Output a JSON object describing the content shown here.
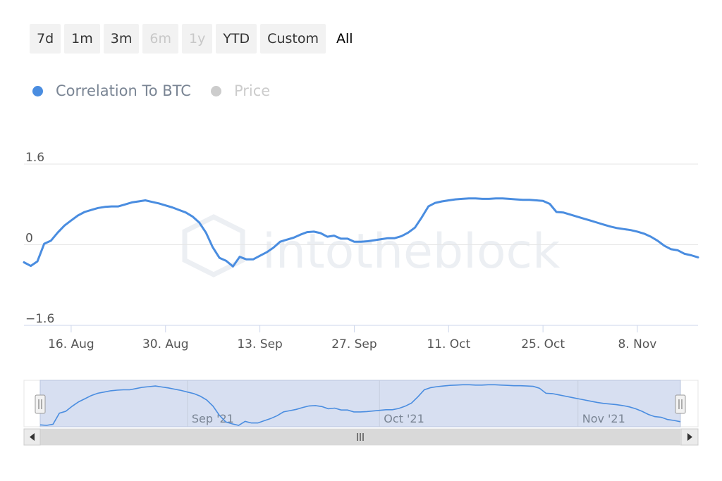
{
  "range_selector": {
    "buttons": [
      {
        "label": "7d",
        "state": "normal"
      },
      {
        "label": "1m",
        "state": "normal"
      },
      {
        "label": "3m",
        "state": "normal"
      },
      {
        "label": "6m",
        "state": "disabled"
      },
      {
        "label": "1y",
        "state": "disabled"
      },
      {
        "label": "YTD",
        "state": "normal"
      },
      {
        "label": "Custom",
        "state": "normal"
      },
      {
        "label": "All",
        "state": "selected"
      }
    ]
  },
  "legend": {
    "items": [
      {
        "label": "Correlation To BTC",
        "color": "#4a8de0",
        "active": true
      },
      {
        "label": "Price",
        "color": "#cccccc",
        "active": false
      }
    ]
  },
  "watermark": "intotheblock",
  "colors": {
    "series": "#4a8de0",
    "navigator_fill": "#d3dcef",
    "scrollbar": "#d9d9d9"
  },
  "chart_data": {
    "type": "line",
    "series": [
      {
        "name": "Correlation To BTC",
        "x": [
          "2021-08-09",
          "2021-08-10",
          "2021-08-11",
          "2021-08-12",
          "2021-08-13",
          "2021-08-14",
          "2021-08-15",
          "2021-08-16",
          "2021-08-17",
          "2021-08-18",
          "2021-08-19",
          "2021-08-20",
          "2021-08-21",
          "2021-08-22",
          "2021-08-23",
          "2021-08-24",
          "2021-08-25",
          "2021-08-26",
          "2021-08-27",
          "2021-08-28",
          "2021-08-29",
          "2021-08-30",
          "2021-08-31",
          "2021-09-01",
          "2021-09-02",
          "2021-09-03",
          "2021-09-04",
          "2021-09-05",
          "2021-09-06",
          "2021-09-07",
          "2021-09-08",
          "2021-09-09",
          "2021-09-10",
          "2021-09-11",
          "2021-09-12",
          "2021-09-13",
          "2021-09-14",
          "2021-09-15",
          "2021-09-16",
          "2021-09-17",
          "2021-09-18",
          "2021-09-19",
          "2021-09-20",
          "2021-09-21",
          "2021-09-22",
          "2021-09-23",
          "2021-09-24",
          "2021-09-25",
          "2021-09-26",
          "2021-09-27",
          "2021-09-28",
          "2021-09-29",
          "2021-09-30",
          "2021-10-01",
          "2021-10-02",
          "2021-10-03",
          "2021-10-04",
          "2021-10-05",
          "2021-10-06",
          "2021-10-07",
          "2021-10-08",
          "2021-10-09",
          "2021-10-10",
          "2021-10-11",
          "2021-10-12",
          "2021-10-13",
          "2021-10-14",
          "2021-10-15",
          "2021-10-16",
          "2021-10-17",
          "2021-10-18",
          "2021-10-19",
          "2021-10-20",
          "2021-10-21",
          "2021-10-22",
          "2021-10-23",
          "2021-10-24",
          "2021-10-25",
          "2021-10-26",
          "2021-10-27",
          "2021-10-28",
          "2021-10-29",
          "2021-10-30",
          "2021-10-31",
          "2021-11-01",
          "2021-11-02",
          "2021-11-03",
          "2021-11-04",
          "2021-11-05",
          "2021-11-06",
          "2021-11-07",
          "2021-11-08",
          "2021-11-09",
          "2021-11-10",
          "2021-11-11",
          "2021-11-12",
          "2021-11-13",
          "2021-11-14",
          "2021-11-15",
          "2021-11-16",
          "2021-11-17"
        ],
        "values": [
          -0.35,
          -0.42,
          -0.33,
          0.02,
          0.08,
          0.24,
          0.38,
          0.48,
          0.58,
          0.65,
          0.69,
          0.73,
          0.75,
          0.76,
          0.76,
          0.8,
          0.84,
          0.86,
          0.88,
          0.85,
          0.82,
          0.78,
          0.74,
          0.69,
          0.64,
          0.56,
          0.44,
          0.24,
          -0.05,
          -0.26,
          -0.32,
          -0.43,
          -0.24,
          -0.29,
          -0.29,
          -0.22,
          -0.15,
          -0.06,
          0.06,
          0.1,
          0.14,
          0.2,
          0.25,
          0.26,
          0.23,
          0.16,
          0.18,
          0.12,
          0.12,
          0.06,
          0.06,
          0.07,
          0.09,
          0.11,
          0.13,
          0.13,
          0.17,
          0.24,
          0.34,
          0.54,
          0.76,
          0.83,
          0.86,
          0.88,
          0.9,
          0.91,
          0.92,
          0.92,
          0.91,
          0.91,
          0.92,
          0.92,
          0.91,
          0.9,
          0.89,
          0.89,
          0.88,
          0.87,
          0.81,
          0.65,
          0.64,
          0.6,
          0.56,
          0.52,
          0.48,
          0.44,
          0.4,
          0.36,
          0.33,
          0.31,
          0.29,
          0.26,
          0.22,
          0.16,
          0.08,
          -0.02,
          -0.09,
          -0.11,
          -0.18,
          -0.21,
          -0.25
        ]
      }
    ],
    "yticks": [
      "1.6",
      "0",
      "−1.6"
    ],
    "ylim": [
      -1.6,
      1.6
    ],
    "xticks": [
      {
        "date": "2021-08-16",
        "label": "16. Aug"
      },
      {
        "date": "2021-08-30",
        "label": "30. Aug"
      },
      {
        "date": "2021-09-13",
        "label": "13. Sep"
      },
      {
        "date": "2021-09-27",
        "label": "27. Sep"
      },
      {
        "date": "2021-10-11",
        "label": "11. Oct"
      },
      {
        "date": "2021-10-25",
        "label": "25. Oct"
      },
      {
        "date": "2021-11-08",
        "label": "8. Nov"
      }
    ],
    "navigator": {
      "labels": [
        {
          "date": "2021-09-01",
          "label": "Sep '21"
        },
        {
          "date": "2021-10-01",
          "label": "Oct '21"
        },
        {
          "date": "2021-11-01",
          "label": "Nov '21"
        }
      ]
    },
    "grid": true,
    "legend_position": "top-left"
  }
}
